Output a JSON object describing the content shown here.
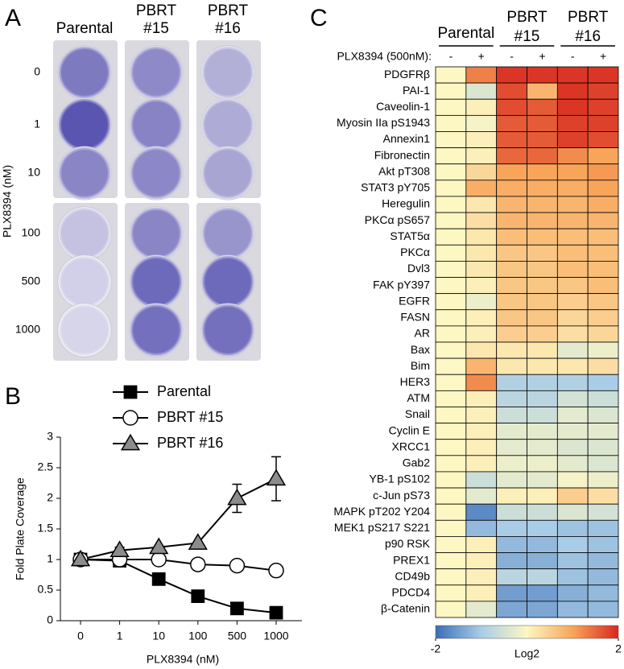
{
  "panel_a": {
    "label": "A",
    "columns": [
      [
        "Parental"
      ],
      [
        "PBRT",
        "#15"
      ],
      [
        "PBRT",
        "#16"
      ]
    ],
    "rows": [
      0,
      1,
      10,
      100,
      500,
      1000
    ],
    "axis_label": "PLX8394 (nM)"
  },
  "chart_data": [
    {
      "type": "line",
      "label": "B",
      "xlabel": "PLX8394 (nM)",
      "ylabel": "Fold Plate Coverage",
      "categories": [
        "0",
        "1",
        "10",
        "100",
        "500",
        "1000"
      ],
      "ylim": [
        0,
        3
      ],
      "yticks": [
        0,
        0.5,
        1,
        1.5,
        2,
        2.5,
        3
      ],
      "series": [
        {
          "name": "Parental",
          "color": "#000000",
          "marker": "square",
          "values": [
            1,
            0.98,
            0.68,
            0.4,
            0.2,
            0.13
          ],
          "errors": [
            null,
            null,
            0.07,
            null,
            null,
            null
          ]
        },
        {
          "name": "PBRT #15",
          "color": "#ffffff",
          "marker": "circle",
          "values": [
            1,
            1.0,
            1.0,
            0.92,
            0.9,
            0.82
          ],
          "errors": [
            null,
            null,
            null,
            null,
            null,
            null
          ]
        },
        {
          "name": "PBRT #16",
          "color": "#8c8c8c",
          "marker": "triangle",
          "values": [
            1,
            1.15,
            1.2,
            1.27,
            2.0,
            2.32
          ],
          "errors": [
            null,
            0.05,
            null,
            null,
            0.23,
            0.36
          ]
        }
      ]
    },
    {
      "type": "heatmap",
      "label": "C",
      "column_groups": [
        [
          "Parental"
        ],
        [
          "PBRT",
          "#15"
        ],
        [
          "PBRT",
          "#16"
        ]
      ],
      "treatment_label": "PLX8394 (500nM):",
      "columns": [
        "-",
        "+",
        "-",
        "+",
        "-",
        "+"
      ],
      "rows": [
        "PDGFRβ",
        "PAI-1",
        "Caveolin-1",
        "Myosin IIa pS1943",
        "Annexin1",
        "Fibronectin",
        "Akt pT308",
        "STAT3 pY705",
        "Heregulin",
        "PKCα pS657",
        "STAT5α",
        "PKCα",
        "Dvl3",
        "FAK pY397",
        "EGFR",
        "FASN",
        "AR",
        "Bax",
        "Bim",
        "HER3",
        "ATM",
        "Snail",
        "Cyclin E",
        "XRCC1",
        "Gab2",
        "YB-1 pS102",
        "c-Jun pS73",
        "MAPK pT202 Y204",
        "MEK1 pS217 S221",
        "p90 RSK",
        "PREX1",
        "CD49b",
        "PDCD4",
        "β-Catenin"
      ],
      "values": [
        [
          0,
          1.3,
          1.9,
          1.9,
          1.9,
          1.9
        ],
        [
          0,
          -0.4,
          1.7,
          0.8,
          1.9,
          1.8
        ],
        [
          0,
          0.1,
          1.7,
          1.6,
          1.9,
          1.8
        ],
        [
          0,
          -0.1,
          1.6,
          1.6,
          1.8,
          1.8
        ],
        [
          0,
          0.1,
          1.6,
          1.6,
          1.8,
          1.7
        ],
        [
          0,
          0.1,
          1.5,
          1.5,
          1.2,
          1.0
        ],
        [
          0,
          0.4,
          1.0,
          1.0,
          1.0,
          1.1
        ],
        [
          0,
          0.9,
          0.9,
          0.9,
          0.9,
          1.0
        ],
        [
          0,
          0.2,
          0.8,
          0.8,
          0.8,
          0.9
        ],
        [
          0,
          0.3,
          0.8,
          0.8,
          0.8,
          0.8
        ],
        [
          0,
          0.2,
          0.7,
          0.7,
          0.7,
          0.7
        ],
        [
          0,
          0.2,
          0.6,
          0.6,
          0.7,
          0.7
        ],
        [
          0,
          0.2,
          0.6,
          0.6,
          0.7,
          0.7
        ],
        [
          0,
          0.1,
          0.6,
          0.6,
          0.6,
          0.7
        ],
        [
          0,
          -0.2,
          0.6,
          0.6,
          0.5,
          0.6
        ],
        [
          0,
          0.1,
          0.6,
          0.6,
          0.4,
          0.5
        ],
        [
          0,
          0.1,
          0.5,
          0.5,
          0.3,
          0.4
        ],
        [
          0,
          0.2,
          0.2,
          0.2,
          -0.3,
          -0.2
        ],
        [
          0,
          0.8,
          0.2,
          0.2,
          0.2,
          0.3
        ],
        [
          0,
          1.2,
          -0.9,
          -0.9,
          -0.9,
          -1.0
        ],
        [
          0,
          0.1,
          -0.8,
          -0.8,
          -0.5,
          -0.6
        ],
        [
          0,
          0.1,
          -0.6,
          -0.6,
          -0.3,
          -0.4
        ],
        [
          0,
          0.1,
          -0.3,
          -0.3,
          -0.3,
          -0.3
        ],
        [
          0,
          0.1,
          -0.3,
          -0.3,
          -0.4,
          -0.4
        ],
        [
          0,
          0.1,
          -0.2,
          -0.2,
          -0.3,
          -0.4
        ],
        [
          0,
          -0.6,
          -0.3,
          -0.3,
          -0.1,
          -0.2
        ],
        [
          0,
          -0.3,
          0.1,
          0.1,
          0.5,
          0.3
        ],
        [
          0,
          -1.7,
          -0.6,
          -0.6,
          -0.4,
          -0.5
        ],
        [
          0,
          -1.2,
          -1.0,
          -1.0,
          -1.1,
          -1.1
        ],
        [
          0,
          0.1,
          -1.2,
          -1.2,
          -1.0,
          -1.1
        ],
        [
          0,
          0.1,
          -1.3,
          -1.3,
          -1.1,
          -1.2
        ],
        [
          0,
          0.1,
          -0.8,
          -0.8,
          -1.1,
          -1.2
        ],
        [
          0,
          0.1,
          -1.5,
          -1.5,
          -1.3,
          -1.2
        ],
        [
          0,
          -0.3,
          -1.4,
          -1.4,
          -1.2,
          -1.2
        ]
      ],
      "clim": [
        -2,
        2
      ],
      "cticks": [
        -2,
        2
      ],
      "colorbar_label": "Log2",
      "colormap": [
        "#3a6db5",
        "#a9cde6",
        "#fdf7c3",
        "#f8a55a",
        "#d8281f"
      ]
    }
  ]
}
